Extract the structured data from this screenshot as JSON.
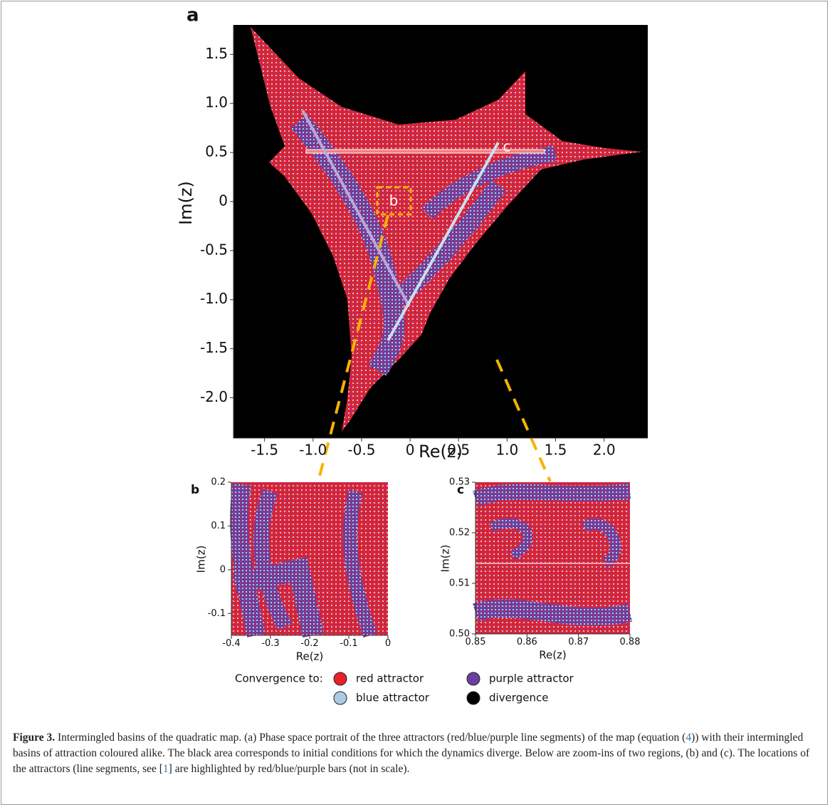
{
  "figure": {
    "panels": [
      {
        "label": "a",
        "xlabel": "Re(z)",
        "ylabel": "Im(z)",
        "xlim": [
          -1.82,
          2.45
        ],
        "ylim": [
          -2.41,
          1.8
        ],
        "xticks": [
          -1.5,
          {
            "value": -1,
            "label": "-1.0"
          },
          -0.5,
          0,
          0.5,
          {
            "value": 1,
            "label": "1.0"
          },
          1.5,
          {
            "value": 2,
            "label": "2.0"
          }
        ],
        "yticks": [
          1.5,
          {
            "value": 1,
            "label": "1.0"
          },
          0.5,
          0,
          -0.5,
          {
            "value": -1,
            "label": "-1.0"
          },
          -1.5,
          {
            "value": -2,
            "label": "-2.0"
          }
        ],
        "zoom_labels": [
          "b",
          "c"
        ]
      },
      {
        "label": "b",
        "xlabel": "Re(z)",
        "ylabel": "Im(z)",
        "xlim": [
          -0.4,
          0
        ],
        "ylim": [
          -0.15,
          0.2
        ],
        "xticks": [
          -0.4,
          -0.3,
          -0.2,
          -0.1,
          0
        ],
        "yticks": [
          0.2,
          0.1,
          0,
          -0.1
        ]
      },
      {
        "label": "c",
        "xlabel": "Re(z)",
        "ylabel": "Im(z)",
        "xlim": [
          0.85,
          0.88
        ],
        "ylim": [
          0.5,
          0.53
        ],
        "xticks": [
          0.85,
          0.86,
          0.87,
          0.88
        ],
        "yticks": [
          0.53,
          0.52,
          0.51,
          {
            "value": 0.5,
            "label": "0.50"
          }
        ]
      }
    ],
    "legend": {
      "title": "Convergence to:",
      "items": [
        {
          "name": "red attractor",
          "color": "#e8202a"
        },
        {
          "name": "purple attractor",
          "color": "#6a3fa0"
        },
        {
          "name": "blue attractor",
          "color": "#a9cbe6"
        },
        {
          "name": "divergence",
          "color": "#000000"
        }
      ]
    }
  },
  "caption": {
    "label": "Figure 3.",
    "parts": [
      "Intermingled basins of the quadratic map. (a) Phase space portrait of the three attractors (red/blue/purple line segments) of the map (equation (",
      "4",
      ")) with their intermingled basins of attraction coloured alike. The black area corresponds to initial conditions for which the dynamics diverge. Below are zoom-ins of two regions, (b) and (c). The locations of the attractors (line segments, see [",
      "1",
      "] are highlighted by red/blue/purple bars (not in scale)."
    ]
  }
}
